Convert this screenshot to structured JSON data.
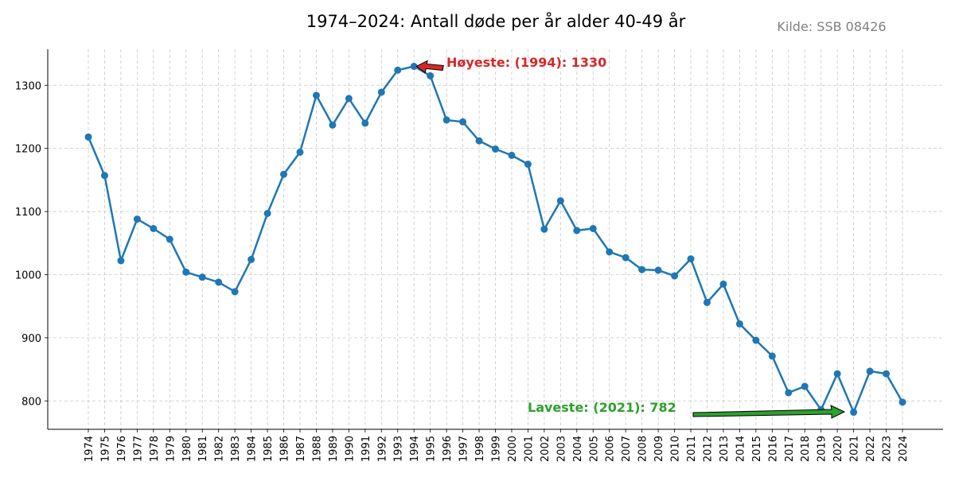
{
  "chart_data": {
    "type": "line",
    "title": "1974–2024: Antall døde per år alder 40-49 år",
    "source": "Kilde: SSB 08426",
    "xlabel": "",
    "ylabel": "",
    "x": [
      1974,
      1975,
      1976,
      1977,
      1978,
      1979,
      1980,
      1981,
      1982,
      1983,
      1984,
      1985,
      1986,
      1987,
      1988,
      1989,
      1990,
      1991,
      1992,
      1993,
      1994,
      1995,
      1996,
      1997,
      1998,
      1999,
      2000,
      2001,
      2002,
      2003,
      2004,
      2005,
      2006,
      2007,
      2008,
      2009,
      2010,
      2011,
      2012,
      2013,
      2014,
      2015,
      2016,
      2017,
      2018,
      2019,
      2020,
      2021,
      2022,
      2023,
      2024
    ],
    "values": [
      1218,
      1157,
      1022,
      1088,
      1073,
      1056,
      1004,
      996,
      988,
      973,
      1024,
      1097,
      1159,
      1194,
      1284,
      1237,
      1279,
      1240,
      1289,
      1324,
      1330,
      1315,
      1245,
      1242,
      1212,
      1199,
      1189,
      1175,
      1072,
      1117,
      1070,
      1073,
      1036,
      1027,
      1008,
      1007,
      998,
      1025,
      956,
      985,
      922,
      896,
      871,
      813,
      823,
      786,
      843,
      782,
      847,
      843,
      798
    ],
    "ylim": [
      755,
      1357
    ],
    "yticks": [
      800,
      900,
      1000,
      1100,
      1200,
      1300
    ],
    "grid": true,
    "line_color": "#1f77b4",
    "annotations": [
      {
        "text": "Høyeste: (1994): 1330",
        "x": 1994,
        "y": 1330,
        "color": "#d62728"
      },
      {
        "text": "Laveste: (2021): 782",
        "x": 2021,
        "y": 782,
        "color": "#2ca02c"
      }
    ]
  }
}
